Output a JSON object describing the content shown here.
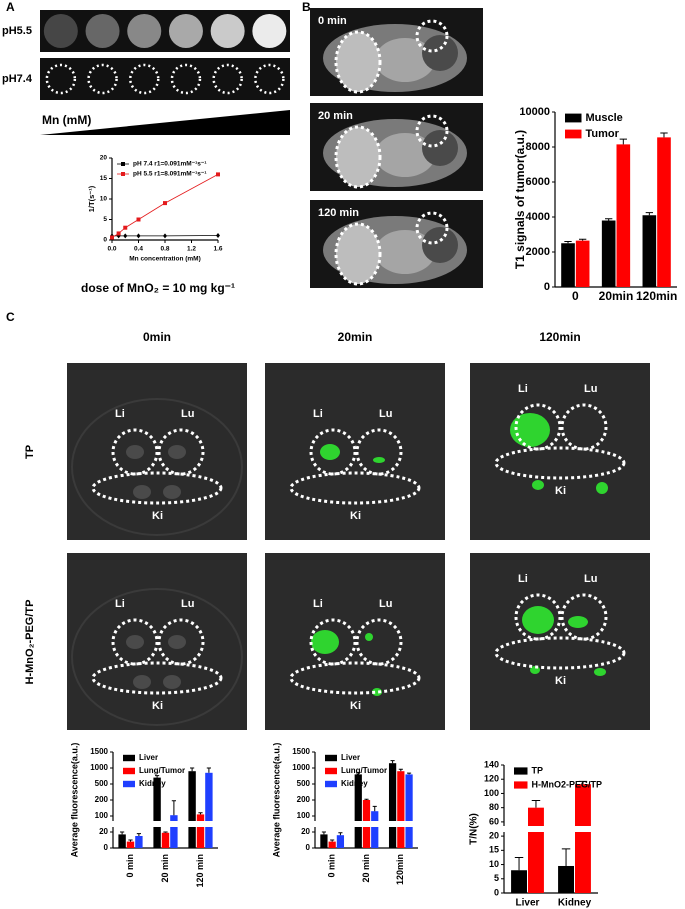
{
  "panels": {
    "a": {
      "label": "A",
      "rows": [
        "pH5.5",
        "pH7.4"
      ],
      "gradient_label": "Mn (mM)",
      "dose": "dose of MnO₂ = 10 mg kg⁻¹"
    },
    "b": {
      "label": "B",
      "times": [
        "0 min",
        "20 min",
        "120 min"
      ]
    },
    "c": {
      "label": "C",
      "columns": [
        "0min",
        "20min",
        "120min"
      ],
      "rows": [
        "TP",
        "H-MnO₂-PEG/TP"
      ],
      "organs": [
        "Li",
        "Lu",
        "Ki"
      ]
    }
  },
  "chart_data": [
    {
      "type": "line",
      "xlabel": "Mn concentration (mM)",
      "ylabel": "1/T(s⁻¹)",
      "x": [
        0,
        0.1,
        0.2,
        0.4,
        0.8,
        1.6
      ],
      "series": [
        {
          "name": "pH 7.4 r1=0.091mM⁻¹s⁻¹",
          "color": "#000000",
          "marker": "diamond",
          "values": [
            1,
            1,
            1,
            1,
            1,
            1.1
          ]
        },
        {
          "name": "pH 5.5 r1=8.091mM⁻¹s⁻¹",
          "color": "#e41a1c",
          "marker": "square",
          "values": [
            0.6,
            1.6,
            3,
            5,
            9,
            16
          ]
        }
      ],
      "xlim": [
        0,
        1.6
      ],
      "xticks": [
        {
          "value": 0,
          "label": "0.0"
        },
        0.4,
        0.8,
        1.2,
        1.6
      ],
      "ylim": [
        0,
        20
      ],
      "yticks": [
        0,
        5,
        10,
        15,
        20
      ],
      "legend": "top-left"
    },
    {
      "type": "bar",
      "ylabel": "T1 signals of tumor(a.u.)",
      "categories": [
        "0",
        "20min",
        "120min"
      ],
      "series": [
        {
          "name": "Muscle",
          "color": "#000000",
          "values": [
            2500,
            3800,
            4100
          ],
          "errors": [
            100,
            100,
            150
          ]
        },
        {
          "name": "Tumor",
          "color": "#ff0000",
          "values": [
            2650,
            8150,
            8550
          ],
          "errors": [
            80,
            300,
            250
          ]
        }
      ],
      "ylim": [
        0,
        10000
      ],
      "yticks": [
        0,
        2000,
        4000,
        6000,
        8000,
        10000
      ],
      "legend": "top-left"
    },
    {
      "type": "bar",
      "broken_axis": true,
      "ylabel": "Average fluorescence(a.u.)",
      "categories": [
        "0 min",
        "20 min",
        "120 min"
      ],
      "series": [
        {
          "name": "Liver",
          "color": "#000000",
          "values": [
            17,
            700,
            900
          ],
          "errors": [
            3,
            60,
            100
          ]
        },
        {
          "name": "Lung/Tumor",
          "color": "#ff0000",
          "values": [
            8,
            19,
            110
          ],
          "errors": [
            2,
            1,
            10
          ]
        },
        {
          "name": "Kidney",
          "color": "#1f3fff",
          "values": [
            15,
            105,
            850
          ],
          "errors": [
            3,
            90,
            150
          ]
        }
      ],
      "ylim": [
        0,
        1500
      ],
      "yticks": [
        0,
        20,
        100,
        200,
        500,
        1000,
        1500
      ],
      "legend": "top-left"
    },
    {
      "type": "bar",
      "broken_axis": true,
      "ylabel": "Average fluorescence(a.u.)",
      "categories": [
        "0 min",
        "20 min",
        "120min"
      ],
      "series": [
        {
          "name": "Liver",
          "color": "#000000",
          "values": [
            17,
            800,
            1150
          ],
          "errors": [
            3,
            60,
            80
          ]
        },
        {
          "name": "Lung/Tumor",
          "color": "#ff0000",
          "values": [
            8,
            200,
            900
          ],
          "errors": [
            2,
            15,
            60
          ]
        },
        {
          "name": "Kidney",
          "color": "#1f3fff",
          "values": [
            16,
            130,
            800
          ],
          "errors": [
            3,
            30,
            40
          ]
        }
      ],
      "ylim": [
        0,
        1500
      ],
      "yticks": [
        0,
        20,
        100,
        200,
        500,
        1000,
        1500
      ],
      "legend": "top-left"
    },
    {
      "type": "bar",
      "broken_axis": true,
      "ylabel": "T/N(%)",
      "categories": [
        "Liver",
        "Kidney"
      ],
      "series": [
        {
          "name": "TP",
          "color": "#000000",
          "values": [
            8,
            9.5
          ],
          "errors": [
            4.5,
            6
          ]
        },
        {
          "name": "H-MnO2-PEG/TP",
          "color": "#ff0000",
          "values": [
            80,
            113
          ],
          "errors": [
            10,
            4
          ]
        }
      ],
      "ylim": [
        0,
        140
      ],
      "yticks": [
        0,
        5,
        10,
        15,
        20,
        60,
        80,
        100,
        120,
        140
      ],
      "legend": "top-left"
    }
  ]
}
